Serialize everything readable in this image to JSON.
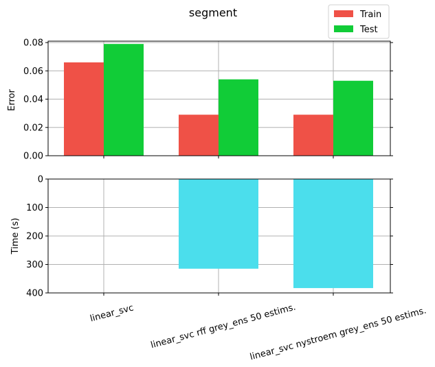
{
  "chart_data": {
    "type": "bar",
    "title": "segment",
    "categories": [
      "linear_svc",
      "linear_svc rff grey_ens 50 estims.",
      "linear_svc nystroem grey_ens 50 estims."
    ],
    "grid": true,
    "legend_position": "top-right",
    "panels": [
      {
        "ylabel": "Error",
        "ylim": [
          0,
          0.081
        ],
        "yticks": [
          0.0,
          0.02,
          0.04,
          0.06,
          0.08
        ],
        "ytick_labels": [
          "0.00",
          "0.02",
          "0.04",
          "0.06",
          "0.08"
        ],
        "series": [
          {
            "name": "Train",
            "color": "#ef5147",
            "values": [
              0.066,
              0.029,
              0.029
            ]
          },
          {
            "name": "Test",
            "color": "#11cc37",
            "values": [
              0.079,
              0.054,
              0.053
            ]
          }
        ]
      },
      {
        "ylabel": "Time (s)",
        "ylim": [
          0,
          400
        ],
        "inverted": true,
        "yticks": [
          0,
          100,
          200,
          300,
          400
        ],
        "ytick_labels": [
          "0",
          "100",
          "200",
          "300",
          "400"
        ],
        "series": [
          {
            "color": "#4bdeec",
            "values": [
              0,
              315,
              383
            ]
          }
        ]
      }
    ]
  }
}
